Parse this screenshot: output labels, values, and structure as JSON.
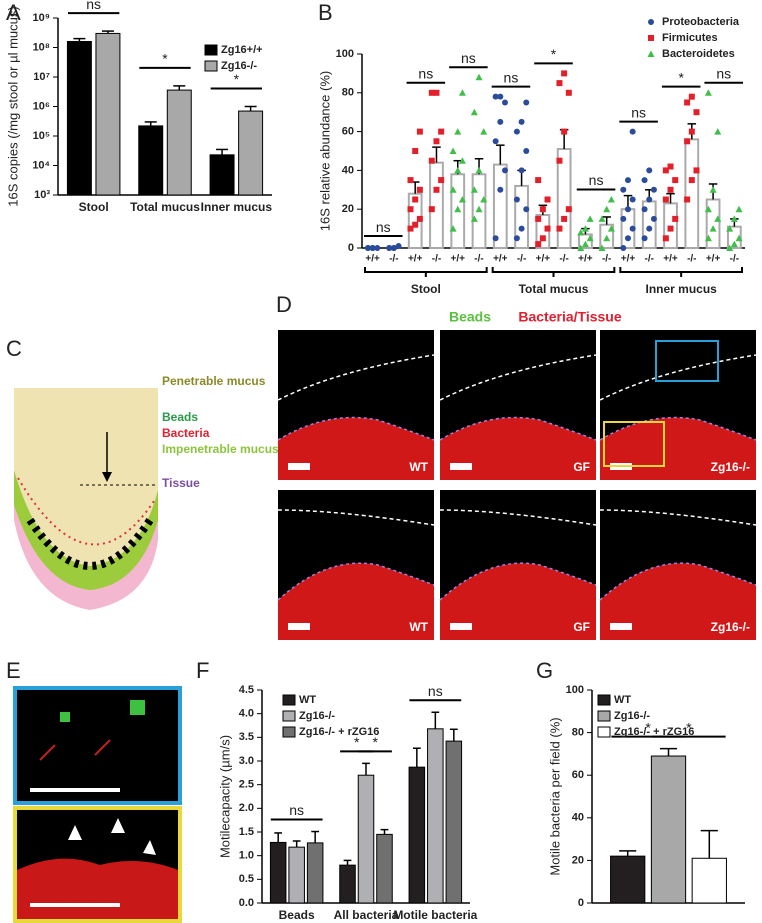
{
  "panels": {
    "letters": [
      "A",
      "B",
      "C",
      "D",
      "E",
      "F",
      "G"
    ]
  },
  "diagram": {
    "labels": [
      "Penetrable mucus",
      "Beads",
      "Bacteria",
      "Impenetrable mucus",
      "Tissue"
    ]
  },
  "images": {
    "channels": [
      "Beads",
      "Bacteria/Tissue"
    ],
    "labels": [
      "WT",
      "GF",
      "Zg16-/-",
      "WT",
      "GF",
      "Zg16-/-"
    ]
  },
  "chart_data": [
    {
      "type": "bar",
      "log": true,
      "ylabel": "16S copies (/mg stool or µl mucus)",
      "categories": [
        "Stool",
        "Total mucus",
        "Inner mucus"
      ],
      "series": [
        {
          "name": "Zg16+/+",
          "color": "#000000",
          "values": [
            160000000,
            220000,
            23000
          ],
          "errors": [
            40000000,
            80000,
            12000
          ]
        },
        {
          "name": "Zg16-/-",
          "color": "#a8a8a8",
          "values": [
            300000000,
            3600000,
            700000
          ],
          "errors": [
            60000000,
            1400000,
            300000
          ]
        }
      ],
      "ylim": [
        1000,
        1000000000
      ],
      "yticks": [
        {
          "value": 1000,
          "label": "10³"
        },
        {
          "value": 10000,
          "label": "10⁴"
        },
        {
          "value": 100000,
          "label": "10⁵"
        },
        {
          "value": 1000000,
          "label": "10⁶"
        },
        {
          "value": 10000000,
          "label": "10⁷"
        },
        {
          "value": 100000000,
          "label": "10⁸"
        },
        {
          "value": 1000000000,
          "label": "10⁹"
        }
      ],
      "annotations": [
        "ns",
        "*",
        "*"
      ]
    },
    {
      "type": "dotplot",
      "ylabel": "16S relative abundance (%)",
      "categories": [
        "+/+",
        "-/-",
        "+/+",
        "-/-",
        "+/+",
        "-/-",
        "+/+",
        "-/-",
        "+/+",
        "-/-",
        "+/+",
        "-/-",
        "+/+",
        "-/-",
        "+/+",
        "-/-",
        "+/+",
        "-/-"
      ],
      "groups": [
        "Stool",
        "Total mucus",
        "Inner mucus"
      ],
      "series": [
        {
          "name": "Proteobacteria",
          "color": "#2b4c9b"
        },
        {
          "name": "Firmicutes",
          "color": "#e3202a"
        },
        {
          "name": "Bacteroidetes",
          "color": "#3fbf4a"
        }
      ],
      "values": [
        0,
        0,
        28,
        44,
        38,
        38,
        43,
        32,
        17,
        51,
        7,
        12,
        20,
        24,
        23,
        56,
        25,
        11
      ],
      "errors": [
        0,
        0,
        6,
        8,
        7,
        8,
        10,
        8,
        5,
        10,
        3,
        4,
        7,
        6,
        5,
        8,
        8,
        4
      ],
      "points": [
        [
          0,
          0,
          0,
          0,
          0
        ],
        [
          0,
          0,
          1,
          0,
          0
        ],
        [
          10,
          12,
          15,
          20,
          25,
          30,
          35,
          50,
          60
        ],
        [
          20,
          30,
          35,
          45,
          55,
          60,
          80,
          80
        ],
        [
          10,
          20,
          25,
          30,
          40,
          45,
          50,
          60,
          80
        ],
        [
          15,
          20,
          25,
          30,
          40,
          60,
          70,
          88
        ],
        [
          5,
          30,
          40,
          55,
          65,
          75,
          78,
          78
        ],
        [
          5,
          10,
          20,
          25,
          40,
          50,
          60,
          65,
          75
        ],
        [
          2,
          5,
          10,
          15,
          20,
          25,
          35
        ],
        [
          10,
          15,
          20,
          45,
          60,
          80,
          85,
          90
        ],
        [
          0,
          2,
          5,
          8,
          10,
          15
        ],
        [
          0,
          5,
          10,
          15,
          20,
          25
        ],
        [
          0,
          5,
          10,
          15,
          20,
          25,
          30,
          35,
          60
        ],
        [
          5,
          10,
          15,
          20,
          25,
          30,
          35,
          40
        ],
        [
          5,
          10,
          15,
          25,
          30,
          35,
          40,
          42
        ],
        [
          25,
          35,
          40,
          55,
          60,
          70,
          75,
          78
        ],
        [
          5,
          10,
          15,
          20,
          30,
          60,
          80
        ],
        [
          0,
          2,
          5,
          10,
          15,
          20
        ]
      ],
      "ylim": [
        0,
        100
      ],
      "yticks": [
        0,
        20,
        40,
        60,
        80,
        100
      ],
      "annotations": [
        "ns",
        "ns",
        "ns",
        "ns",
        "*",
        "ns",
        "ns",
        "*",
        "ns"
      ]
    },
    {
      "type": "bar",
      "ylabel": "Motilecapacity (µm/s)",
      "categories": [
        "Beads",
        "All bacteria",
        "Motile bacteria"
      ],
      "series": [
        {
          "name": "WT",
          "color": "#231f20",
          "values": [
            1.28,
            0.8,
            2.87
          ],
          "errors": [
            0.2,
            0.1,
            0.4
          ]
        },
        {
          "name": "Zg16-/-",
          "color": "#b0b0b4",
          "values": [
            1.18,
            2.7,
            3.68
          ],
          "errors": [
            0.13,
            0.25,
            0.35
          ]
        },
        {
          "name": "Zg16-/- + rZG16",
          "color": "#707070",
          "values": [
            1.27,
            1.45,
            3.42
          ],
          "errors": [
            0.24,
            0.1,
            0.25
          ]
        }
      ],
      "ylim": [
        0,
        4.5
      ],
      "yticks": [
        {
          "value": 0,
          "label": "0.0"
        },
        0.5,
        {
          "value": 1,
          "label": "1.0"
        },
        1.5,
        {
          "value": 2,
          "label": "2.0"
        },
        2.5,
        {
          "value": 3,
          "label": "3.0"
        },
        3.5,
        {
          "value": 4,
          "label": "4.0"
        },
        4.5
      ],
      "annotations": [
        "ns",
        "*",
        "*",
        "ns"
      ]
    },
    {
      "type": "bar",
      "ylabel": "Motile bacteria per field (%)",
      "series": [
        {
          "name": "WT",
          "color": "#231f20",
          "values": [
            22
          ],
          "errors": [
            2.5
          ]
        },
        {
          "name": "Zg16-/-",
          "color": "#a8a8a8",
          "values": [
            69
          ],
          "errors": [
            3.5
          ]
        },
        {
          "name": "Zg16-/- + rZG16",
          "color": "#ffffff",
          "values": [
            21
          ],
          "errors": [
            13
          ]
        }
      ],
      "ylim": [
        0,
        100
      ],
      "yticks": [
        0,
        20,
        40,
        60,
        80,
        100
      ],
      "annotations": [
        "*",
        "*"
      ]
    }
  ]
}
